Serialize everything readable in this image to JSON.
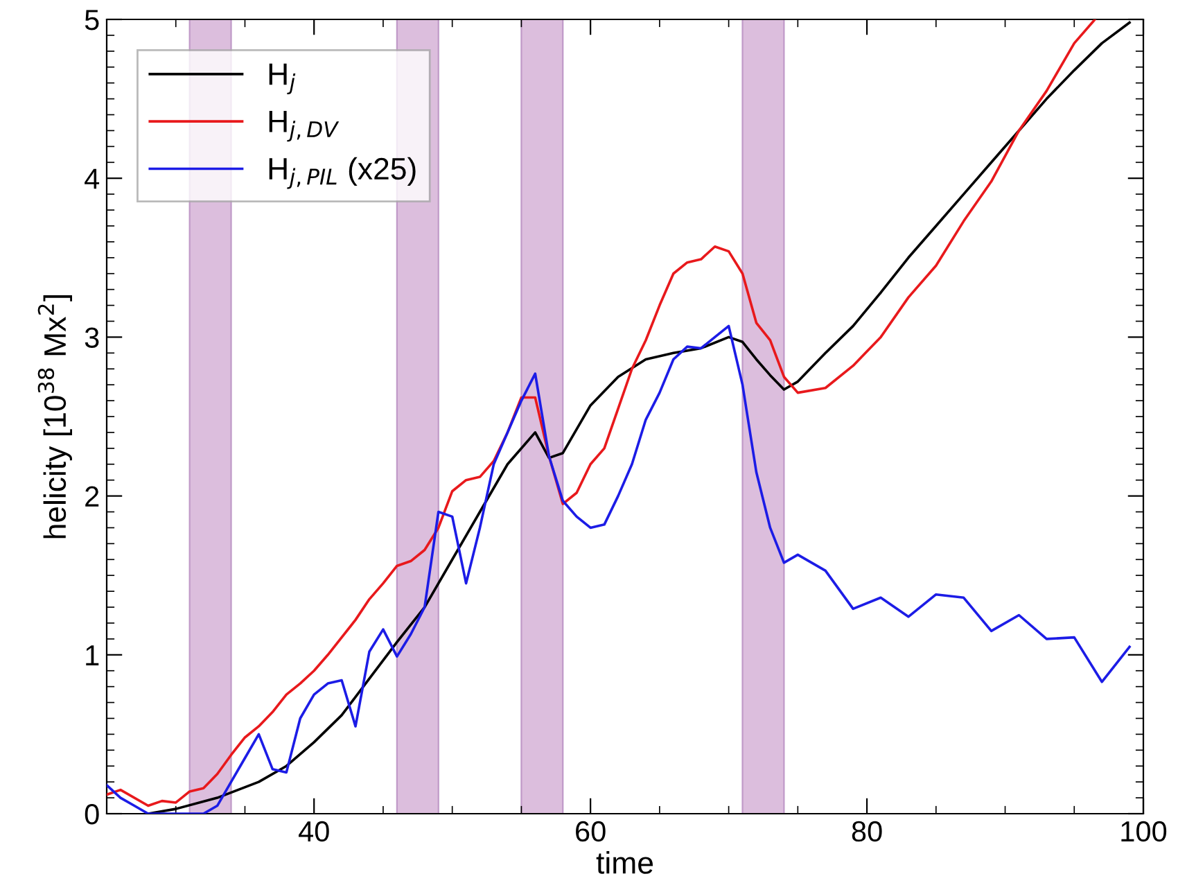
{
  "chart_data": {
    "type": "line",
    "xlabel": "time",
    "ylabel": "helicity [10$^{38}$ Mx$^{2}$]",
    "xlim": [
      25,
      100
    ],
    "ylim": [
      0,
      5
    ],
    "xticks": [
      40,
      60,
      80,
      100
    ],
    "yticks": [
      0,
      1,
      2,
      3,
      4,
      5
    ],
    "grid": false,
    "legend": "top left",
    "marker": "none",
    "line_style": "solid",
    "series": [
      {
        "name": "H$_{j}$",
        "color": "#000000",
        "x": [
          28,
          30,
          33,
          36,
          38,
          40,
          42,
          44,
          46,
          48,
          50,
          52,
          54,
          56,
          57,
          58,
          60,
          62,
          64,
          66,
          68,
          70,
          71,
          72,
          73,
          74,
          75,
          77,
          79,
          81,
          83,
          85,
          87,
          89,
          91,
          93,
          95,
          97,
          99
        ],
        "values": [
          0.0,
          0.03,
          0.1,
          0.2,
          0.3,
          0.45,
          0.62,
          0.85,
          1.08,
          1.3,
          1.6,
          1.9,
          2.2,
          2.4,
          2.24,
          2.27,
          2.57,
          2.75,
          2.86,
          2.9,
          2.93,
          3.0,
          2.97,
          2.86,
          2.76,
          2.67,
          2.72,
          2.9,
          3.07,
          3.28,
          3.5,
          3.7,
          3.9,
          4.1,
          4.3,
          4.5,
          4.68,
          4.85,
          4.98
        ]
      },
      {
        "name": "H$_{j,DV}$",
        "color": "#e8191c",
        "x": [
          25,
          26,
          28,
          29,
          30,
          31,
          32,
          33,
          34,
          35,
          36,
          37,
          38,
          39,
          40,
          41,
          42,
          43,
          44,
          45,
          46,
          47,
          48,
          49,
          50,
          51,
          52,
          53,
          54,
          55,
          56,
          57,
          58,
          59,
          60,
          61,
          62,
          63,
          64,
          65,
          66,
          67,
          68,
          69,
          70,
          71,
          72,
          73,
          74,
          75,
          77,
          79,
          81,
          83,
          85,
          87,
          89,
          91,
          93,
          95,
          96.5
        ],
        "values": [
          0.12,
          0.15,
          0.05,
          0.08,
          0.07,
          0.14,
          0.16,
          0.25,
          0.37,
          0.48,
          0.55,
          0.64,
          0.75,
          0.82,
          0.9,
          1.0,
          1.11,
          1.22,
          1.35,
          1.45,
          1.56,
          1.59,
          1.66,
          1.8,
          2.03,
          2.1,
          2.12,
          2.22,
          2.4,
          2.62,
          2.62,
          2.25,
          1.95,
          2.02,
          2.2,
          2.3,
          2.55,
          2.8,
          2.98,
          3.2,
          3.4,
          3.47,
          3.49,
          3.57,
          3.54,
          3.4,
          3.09,
          2.98,
          2.75,
          2.65,
          2.68,
          2.82,
          3.0,
          3.25,
          3.45,
          3.73,
          3.98,
          4.3,
          4.55,
          4.85,
          5.0
        ]
      },
      {
        "name": "H$_{j,PIL}$ (x25)",
        "color": "#1c1ce6",
        "x": [
          25,
          26,
          27,
          28,
          29,
          30,
          31,
          32,
          33,
          34,
          35,
          36,
          37,
          38,
          39,
          40,
          41,
          42,
          43,
          44,
          45,
          46,
          47,
          48,
          49,
          50,
          51,
          52,
          53,
          54,
          55,
          56,
          57,
          58,
          59,
          60,
          61,
          62,
          63,
          64,
          65,
          66,
          67,
          68,
          69,
          70,
          71,
          72,
          73,
          74,
          75,
          77,
          79,
          81,
          83,
          85,
          87,
          89,
          91,
          93,
          95,
          97,
          99
        ],
        "values": [
          0.18,
          0.1,
          0.05,
          0.0,
          0.0,
          0.0,
          0.0,
          0.0,
          0.05,
          0.2,
          0.35,
          0.5,
          0.28,
          0.26,
          0.6,
          0.75,
          0.82,
          0.84,
          0.55,
          1.02,
          1.16,
          0.99,
          1.13,
          1.3,
          1.9,
          1.87,
          1.45,
          1.8,
          2.2,
          2.4,
          2.6,
          2.77,
          2.25,
          1.97,
          1.87,
          1.8,
          1.82,
          2.0,
          2.2,
          2.48,
          2.65,
          2.86,
          2.94,
          2.93,
          3.0,
          3.07,
          2.7,
          2.15,
          1.8,
          1.58,
          1.63,
          1.53,
          1.29,
          1.36,
          1.24,
          1.38,
          1.36,
          1.15,
          1.25,
          1.1,
          1.11,
          0.83,
          1.05
        ]
      }
    ],
    "bands": [
      {
        "axis": "x",
        "from": 31,
        "to": 34,
        "color": "#dcbedd"
      },
      {
        "axis": "x",
        "from": 46,
        "to": 49,
        "color": "#dcbedd"
      },
      {
        "axis": "x",
        "from": 55,
        "to": 58,
        "color": "#dcbedd"
      },
      {
        "axis": "x",
        "from": 71,
        "to": 74,
        "color": "#dcbedd"
      }
    ]
  }
}
